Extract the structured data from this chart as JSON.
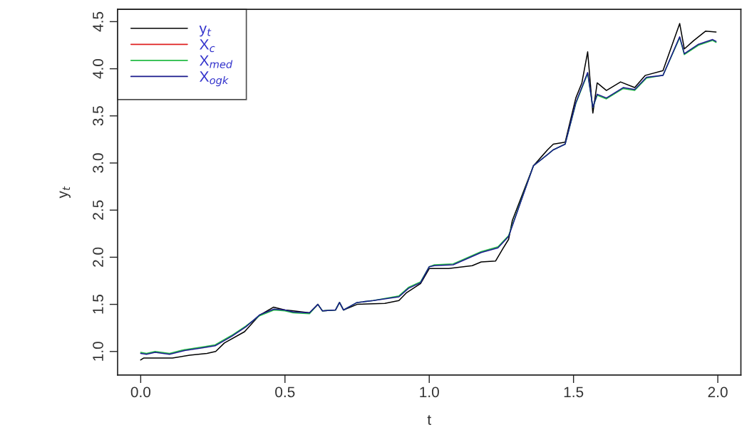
{
  "chart_data": {
    "type": "line",
    "xlabel": "t",
    "ylabel": "y$_{t}$",
    "xlim": [
      -0.08,
      2.08
    ],
    "xticks": [
      {
        "value": 0,
        "label": "0.0"
      },
      0.5,
      {
        "value": 1,
        "label": "1.0"
      },
      1.5,
      {
        "value": 2,
        "label": "2.0"
      }
    ],
    "ylim": [
      0.75,
      4.63
    ],
    "yticks": [
      {
        "value": 1,
        "label": "1.0"
      },
      1.5,
      {
        "value": 2,
        "label": "2.0"
      },
      2.5,
      {
        "value": 3,
        "label": "3.0"
      },
      3.5,
      {
        "value": 4,
        "label": "4.0"
      },
      4.5
    ],
    "grid": false,
    "legend": "top left",
    "line_style": "solid",
    "marker": "none",
    "series": [
      {
        "name": "y$_{t}$",
        "color": "#000000",
        "x": [
          0,
          0.01,
          0.11,
          0.17,
          0.23,
          0.26,
          0.29,
          0.36,
          0.41,
          0.46,
          0.5,
          0.53,
          0.585,
          0.614,
          0.63,
          0.675,
          0.689,
          0.703,
          0.75,
          0.846,
          0.895,
          0.92,
          0.97,
          1.0,
          1.01,
          1.067,
          1.149,
          1.18,
          1.23,
          1.255,
          1.275,
          1.288,
          1.361,
          1.41,
          1.43,
          1.471,
          1.508,
          1.529,
          1.549,
          1.567,
          1.582,
          1.614,
          1.663,
          1.712,
          1.749,
          1.81,
          1.868,
          1.884,
          1.917,
          1.958,
          1.994
        ],
        "values": [
          0.91,
          0.93,
          0.93,
          0.96,
          0.98,
          1.0,
          1.09,
          1.21,
          1.38,
          1.47,
          1.44,
          1.43,
          1.41,
          1.5,
          1.43,
          1.44,
          1.52,
          1.44,
          1.5,
          1.51,
          1.54,
          1.62,
          1.72,
          1.88,
          1.88,
          1.88,
          1.91,
          1.95,
          1.96,
          2.09,
          2.19,
          2.39,
          2.97,
          3.14,
          3.2,
          3.22,
          3.69,
          3.85,
          4.18,
          3.53,
          3.85,
          3.77,
          3.86,
          3.8,
          3.93,
          3.98,
          4.48,
          4.21,
          4.3,
          4.4,
          4.39
        ]
      },
      {
        "name": "X$_{c}$",
        "color": "#df2020"
      },
      {
        "name": "X$_{med}$",
        "color": "#22bb44",
        "x": [
          0,
          0.02,
          0.05,
          0.1,
          0.152,
          0.217,
          0.258,
          0.315,
          0.364,
          0.413,
          0.462,
          0.5,
          0.528,
          0.585,
          0.614,
          0.63,
          0.675,
          0.689,
          0.703,
          0.75,
          0.806,
          0.895,
          0.928,
          0.97,
          1.0,
          1.018,
          1.083,
          1.18,
          1.238,
          1.275,
          1.361,
          1.41,
          1.43,
          1.471,
          1.508,
          1.549,
          1.567,
          1.582,
          1.614,
          1.672,
          1.712,
          1.753,
          1.81,
          1.868,
          1.884,
          1.933,
          1.982,
          1.994
        ],
        "values": [
          0.99,
          0.98,
          1.0,
          0.98,
          1.02,
          1.05,
          1.07,
          1.17,
          1.27,
          1.38,
          1.44,
          1.43,
          1.41,
          1.4,
          1.5,
          1.43,
          1.44,
          1.52,
          1.44,
          1.52,
          1.54,
          1.59,
          1.68,
          1.74,
          1.9,
          1.92,
          1.93,
          2.06,
          2.11,
          2.23,
          2.97,
          3.09,
          3.14,
          3.2,
          3.63,
          3.95,
          3.59,
          3.72,
          3.68,
          3.79,
          3.77,
          3.9,
          3.93,
          4.33,
          4.15,
          4.25,
          4.3,
          4.28
        ]
      },
      {
        "name": "X$_{ogk}$",
        "color": "#1a1a8c",
        "x": [
          0,
          0.02,
          0.05,
          0.1,
          0.152,
          0.217,
          0.258,
          0.315,
          0.364,
          0.413,
          0.462,
          0.5,
          0.528,
          0.585,
          0.614,
          0.63,
          0.675,
          0.689,
          0.703,
          0.75,
          0.806,
          0.895,
          0.928,
          0.97,
          1.0,
          1.018,
          1.083,
          1.18,
          1.238,
          1.275,
          1.361,
          1.41,
          1.43,
          1.471,
          1.508,
          1.549,
          1.567,
          1.582,
          1.614,
          1.672,
          1.712,
          1.753,
          1.81,
          1.868,
          1.884,
          1.933,
          1.982,
          1.994
        ],
        "values": [
          0.98,
          0.97,
          0.99,
          0.97,
          1.01,
          1.04,
          1.06,
          1.16,
          1.26,
          1.39,
          1.45,
          1.44,
          1.42,
          1.41,
          1.5,
          1.43,
          1.44,
          1.52,
          1.44,
          1.52,
          1.54,
          1.58,
          1.67,
          1.73,
          1.9,
          1.91,
          1.92,
          2.05,
          2.1,
          2.22,
          2.97,
          3.09,
          3.14,
          3.2,
          3.64,
          3.96,
          3.59,
          3.73,
          3.69,
          3.8,
          3.78,
          3.91,
          3.93,
          4.34,
          4.16,
          4.26,
          4.31,
          4.29
        ]
      }
    ]
  }
}
